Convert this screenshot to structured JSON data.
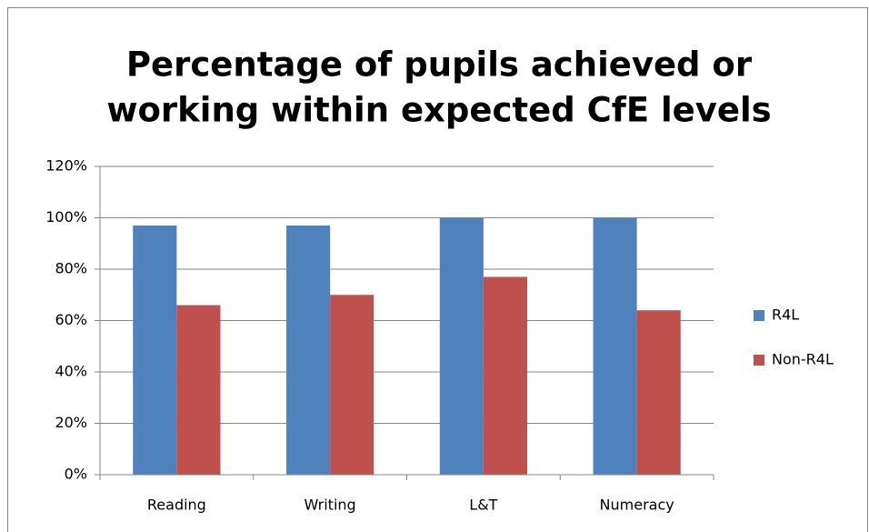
{
  "chart_data": {
    "type": "bar",
    "title": [
      "Percentage of pupils achieved or",
      "working within expected CfE levels"
    ],
    "categories": [
      "Reading",
      "Writing",
      "L&T",
      "Numeracy"
    ],
    "series": [
      {
        "name": "R4L",
        "color": "#4f81bd",
        "values": [
          97,
          97,
          100,
          100
        ]
      },
      {
        "name": "Non-R4L",
        "color": "#c0504d",
        "values": [
          66,
          70,
          77,
          64
        ]
      }
    ],
    "ylim": [
      0,
      120
    ],
    "yticks": [
      {
        "value": 0,
        "label": "0%"
      },
      {
        "value": 20,
        "label": "20%"
      },
      {
        "value": 40,
        "label": "40%"
      },
      {
        "value": 60,
        "label": "60%"
      },
      {
        "value": 80,
        "label": "80%"
      },
      {
        "value": 100,
        "label": "100%"
      },
      {
        "value": 120,
        "label": "120%"
      }
    ],
    "grid": true,
    "legend": "right"
  }
}
